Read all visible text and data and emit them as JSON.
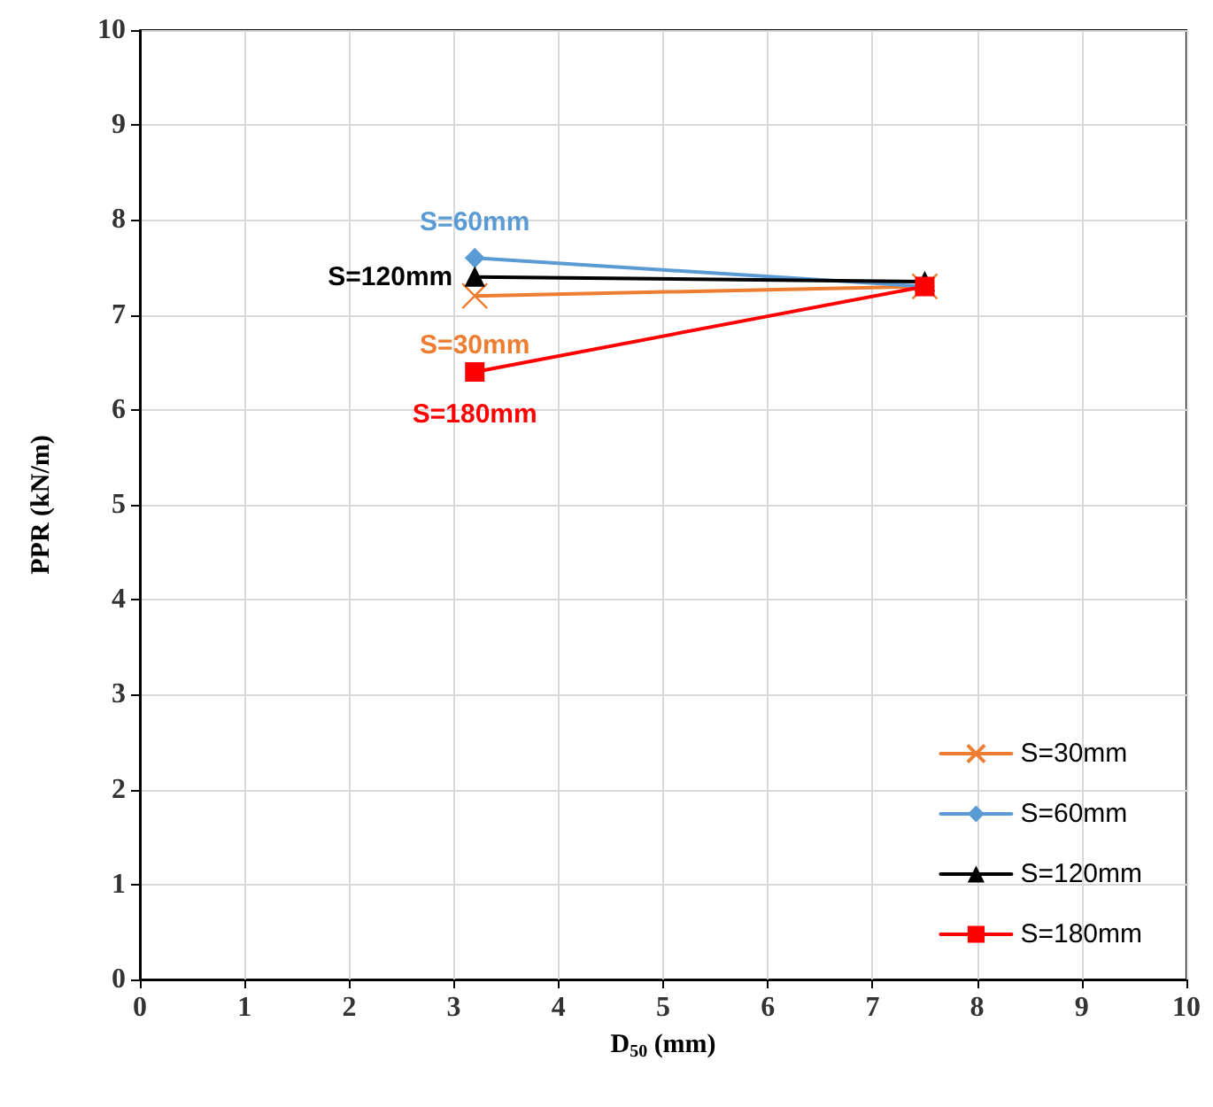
{
  "chart_data": {
    "type": "line",
    "xlabel": "D$_{50}$ (mm)",
    "ylabel": "PPR (kN/m)",
    "x": [
      3.2,
      7.5
    ],
    "series": [
      {
        "name": "S=30mm",
        "color": "#ed7d31",
        "marker": "cross",
        "values": [
          7.2,
          7.3
        ]
      },
      {
        "name": "S=60mm",
        "color": "#5b9bd5",
        "marker": "diamond",
        "values": [
          7.6,
          7.3
        ]
      },
      {
        "name": "S=120mm",
        "color": "#000000",
        "marker": "triangle",
        "values": [
          7.4,
          7.35
        ]
      },
      {
        "name": "S=180mm",
        "color": "#ff0000",
        "marker": "square",
        "values": [
          6.4,
          7.3
        ]
      }
    ],
    "xlim": [
      0,
      10
    ],
    "xticks": [
      0,
      1,
      2,
      3,
      4,
      5,
      6,
      7,
      8,
      9,
      10
    ],
    "ylim": [
      0,
      10
    ],
    "yticks": [
      0,
      1,
      2,
      3,
      4,
      5,
      6,
      7,
      8,
      9,
      10
    ],
    "grid": true,
    "legend": "bottom right",
    "line_style": "solid"
  }
}
